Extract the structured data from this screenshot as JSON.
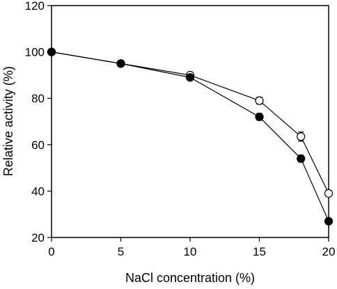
{
  "chart_data": {
    "type": "scatter",
    "xlabel": "NaCl concentration (%)",
    "ylabel": "Relative activity (%)",
    "xlim": [
      0,
      20
    ],
    "ylim": [
      20,
      120
    ],
    "x_ticks": [
      "0",
      "5",
      "10",
      "15",
      "20"
    ],
    "y_ticks": [
      "20",
      "40",
      "60",
      "80",
      "100",
      "120"
    ],
    "grid": false,
    "legend": "none",
    "series": [
      {
        "marker": "open-circle",
        "color": "#000000",
        "x": [
          0,
          5,
          10,
          15,
          18,
          20
        ],
        "y": [
          100,
          95,
          90,
          79,
          63.5,
          39
        ],
        "err": [
          0.8,
          1.2,
          0.6,
          1.5,
          2.0,
          0.8
        ]
      },
      {
        "marker": "filled-circle",
        "color": "#000000",
        "x": [
          0,
          5,
          10,
          15,
          18,
          20
        ],
        "y": [
          100,
          95,
          89,
          72,
          54,
          27
        ],
        "err": [
          0.8,
          1.2,
          0.8,
          1.5,
          1.5,
          0.8
        ]
      }
    ]
  }
}
